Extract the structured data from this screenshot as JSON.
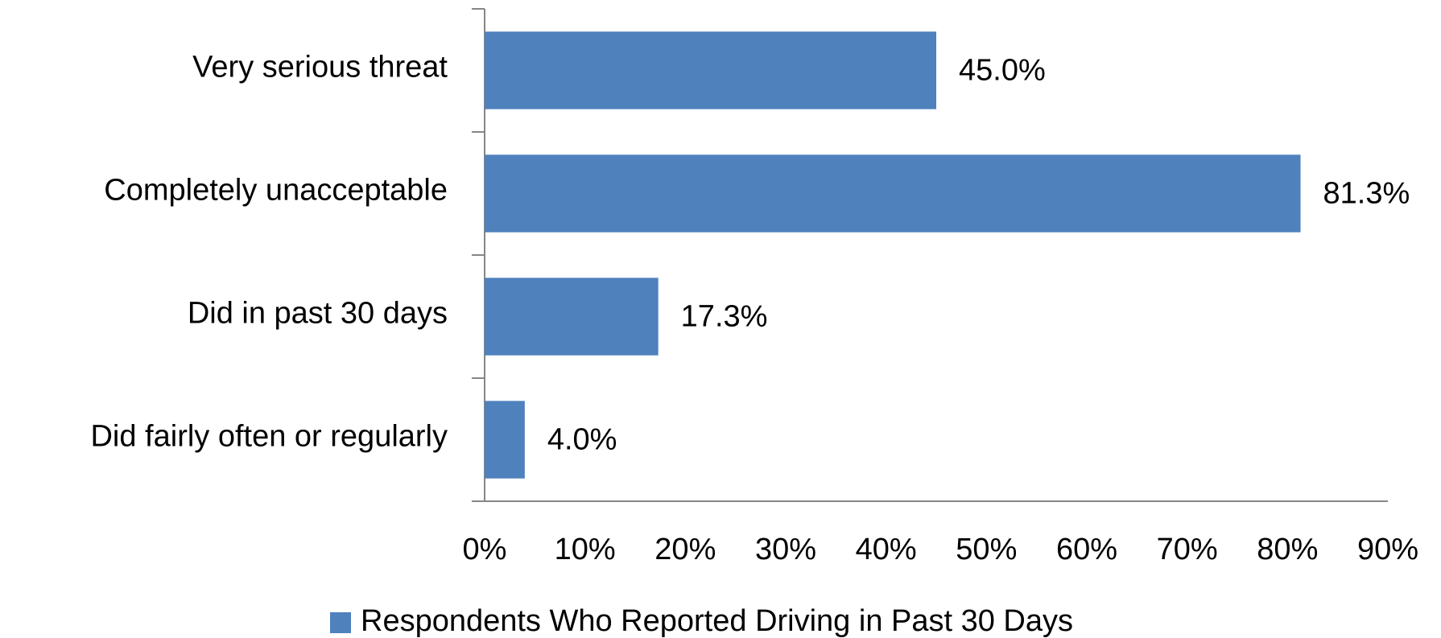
{
  "chart_data": {
    "type": "barh",
    "categories": [
      "Very serious threat",
      "Completely unacceptable",
      "Did in past 30 days",
      "Did fairly often or regularly"
    ],
    "series": [
      {
        "name": "Respondents Who Reported Driving in Past 30 Days",
        "color": "#4f81bd",
        "values": [
          45.0,
          81.3,
          17.3,
          4.0
        ],
        "value_labels": [
          "45.0%",
          "81.3%",
          "17.3%",
          "4.0%"
        ]
      }
    ],
    "xlim": [
      0,
      90
    ],
    "xticks": [
      {
        "value": 0,
        "label": "0%"
      },
      {
        "value": 10,
        "label": "10%"
      },
      {
        "value": 20,
        "label": "20%"
      },
      {
        "value": 30,
        "label": "30%"
      },
      {
        "value": 40,
        "label": "40%"
      },
      {
        "value": 50,
        "label": "50%"
      },
      {
        "value": 60,
        "label": "60%"
      },
      {
        "value": 70,
        "label": "70%"
      },
      {
        "value": 80,
        "label": "80%"
      },
      {
        "value": 90,
        "label": "90%"
      }
    ],
    "grid": false,
    "legend": "bottom"
  }
}
